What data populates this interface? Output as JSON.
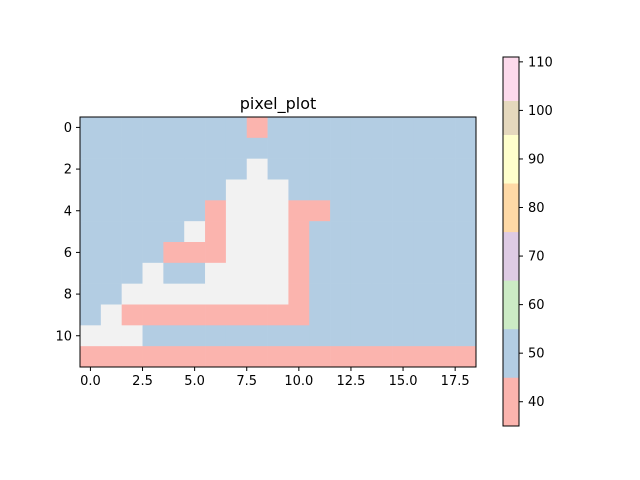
{
  "chart_data": {
    "type": "heatmap",
    "title": "pixel_plot",
    "xlabel": "",
    "ylabel": "",
    "n_cols": 19,
    "n_rows": 12,
    "x_ticks": [
      0,
      2.5,
      5,
      7.5,
      10,
      12.5,
      15,
      17.5
    ],
    "x_tick_labels": [
      "0.0",
      "2.5",
      "5.0",
      "7.5",
      "10.0",
      "12.5",
      "15.0",
      "17.5"
    ],
    "y_ticks": [
      0,
      2,
      4,
      6,
      8,
      10
    ],
    "y_tick_labels": [
      "0",
      "2",
      "4",
      "6",
      "8",
      "10"
    ],
    "colorbar": {
      "min": 35,
      "max": 111,
      "ticks": [
        40,
        50,
        60,
        70,
        80,
        90,
        100,
        110
      ],
      "tick_labels": [
        "40",
        "50",
        "60",
        "70",
        "80",
        "90",
        "100",
        "110"
      ],
      "bands": [
        {
          "from": 35,
          "to": 45,
          "color": "#fbb4ae"
        },
        {
          "from": 45,
          "to": 55,
          "color": "#b3cde3"
        },
        {
          "from": 55,
          "to": 65,
          "color": "#ccebc5"
        },
        {
          "from": 65,
          "to": 75,
          "color": "#decbe4"
        },
        {
          "from": 75,
          "to": 85,
          "color": "#fed9a6"
        },
        {
          "from": 85,
          "to": 95,
          "color": "#ffffcc"
        },
        {
          "from": 95,
          "to": 102,
          "color": "#e5d8bd"
        },
        {
          "from": 102,
          "to": 111,
          "color": "#fddaec"
        },
        {
          "from": 111,
          "to": 111,
          "color": "#f2f2f2"
        }
      ]
    },
    "grid": false,
    "values": [
      [
        50,
        50,
        50,
        50,
        50,
        50,
        50,
        50,
        40,
        50,
        50,
        50,
        50,
        50,
        50,
        50,
        50,
        50,
        50
      ],
      [
        50,
        50,
        50,
        50,
        50,
        50,
        50,
        50,
        50,
        50,
        50,
        50,
        50,
        50,
        50,
        50,
        50,
        50,
        50
      ],
      [
        50,
        50,
        50,
        50,
        50,
        50,
        50,
        50,
        111,
        50,
        50,
        50,
        50,
        50,
        50,
        50,
        50,
        50,
        50
      ],
      [
        50,
        50,
        50,
        50,
        50,
        50,
        50,
        111,
        111,
        111,
        50,
        50,
        50,
        50,
        50,
        50,
        50,
        50,
        50
      ],
      [
        50,
        50,
        50,
        50,
        50,
        50,
        40,
        111,
        111,
        111,
        40,
        40,
        50,
        50,
        50,
        50,
        50,
        50,
        50
      ],
      [
        50,
        50,
        50,
        50,
        50,
        111,
        40,
        111,
        111,
        111,
        40,
        50,
        50,
        50,
        50,
        50,
        50,
        50,
        50
      ],
      [
        50,
        50,
        50,
        50,
        40,
        40,
        40,
        111,
        111,
        111,
        40,
        50,
        50,
        50,
        50,
        50,
        50,
        50,
        50
      ],
      [
        50,
        50,
        50,
        111,
        50,
        50,
        111,
        111,
        111,
        111,
        40,
        50,
        50,
        50,
        50,
        50,
        50,
        50,
        50
      ],
      [
        50,
        50,
        111,
        111,
        111,
        111,
        111,
        111,
        111,
        111,
        40,
        50,
        50,
        50,
        50,
        50,
        50,
        50,
        50
      ],
      [
        50,
        111,
        40,
        40,
        40,
        40,
        40,
        40,
        40,
        40,
        40,
        50,
        50,
        50,
        50,
        50,
        50,
        50,
        50
      ],
      [
        111,
        111,
        111,
        50,
        50,
        50,
        50,
        50,
        50,
        50,
        50,
        50,
        50,
        50,
        50,
        50,
        50,
        50,
        50
      ],
      [
        40,
        40,
        40,
        40,
        40,
        40,
        40,
        40,
        40,
        40,
        40,
        40,
        40,
        40,
        40,
        40,
        40,
        40,
        40
      ]
    ]
  }
}
